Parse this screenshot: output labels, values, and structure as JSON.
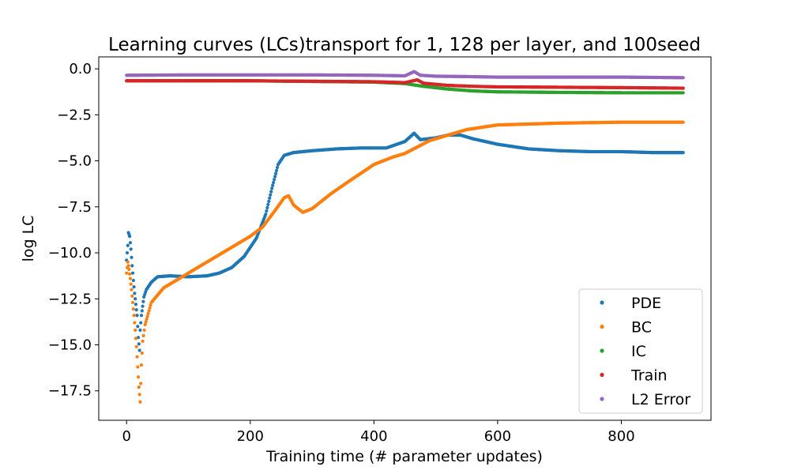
{
  "chart_data": {
    "type": "scatter",
    "title": "Learning curves (LCs)transport for 1, 128 per layer, and 100seed",
    "xlabel": "Training time (# parameter updates)",
    "ylabel": "log LC",
    "xlim": [
      -45,
      945
    ],
    "ylim": [
      -19.1,
      0.65
    ],
    "xticks": [
      0,
      200,
      400,
      600,
      800
    ],
    "yticks": [
      0.0,
      -2.5,
      -5.0,
      -7.5,
      -10.0,
      -12.5,
      -15.0,
      -17.5
    ],
    "xtick_labels": [
      "0",
      "200",
      "400",
      "600",
      "800"
    ],
    "ytick_labels": [
      "0.0",
      "−2.5",
      "−5.0",
      "−7.5",
      "−10.0",
      "−12.5",
      "−15.0",
      "−17.5"
    ],
    "legend_position": "lower-right",
    "grid": false,
    "series": [
      {
        "name": "PDE",
        "color": "#1f77b4",
        "points": [
          [
            0,
            -10.4
          ],
          [
            2,
            -9.6
          ],
          [
            3,
            -8.9
          ],
          [
            5,
            -9.1
          ],
          [
            7,
            -9.8
          ],
          [
            9,
            -10.7
          ],
          [
            11,
            -11.5
          ],
          [
            13,
            -12.2
          ],
          [
            15,
            -12.8
          ],
          [
            17,
            -13.4
          ],
          [
            19,
            -14.6
          ],
          [
            21,
            -15.3
          ],
          [
            22,
            -14.2
          ],
          [
            24,
            -13.4
          ],
          [
            26,
            -12.9
          ],
          [
            28,
            -12.4
          ],
          [
            32,
            -12.0
          ],
          [
            40,
            -11.6
          ],
          [
            50,
            -11.3
          ],
          [
            70,
            -11.25
          ],
          [
            100,
            -11.3
          ],
          [
            130,
            -11.25
          ],
          [
            150,
            -11.1
          ],
          [
            170,
            -10.8
          ],
          [
            190,
            -10.2
          ],
          [
            210,
            -9.2
          ],
          [
            225,
            -7.9
          ],
          [
            235,
            -6.5
          ],
          [
            245,
            -5.2
          ],
          [
            255,
            -4.7
          ],
          [
            270,
            -4.55
          ],
          [
            300,
            -4.45
          ],
          [
            340,
            -4.35
          ],
          [
            380,
            -4.3
          ],
          [
            420,
            -4.3
          ],
          [
            450,
            -3.95
          ],
          [
            465,
            -3.5
          ],
          [
            475,
            -3.85
          ],
          [
            500,
            -3.75
          ],
          [
            520,
            -3.6
          ],
          [
            540,
            -3.6
          ],
          [
            560,
            -3.8
          ],
          [
            600,
            -4.1
          ],
          [
            650,
            -4.35
          ],
          [
            700,
            -4.45
          ],
          [
            750,
            -4.5
          ],
          [
            800,
            -4.5
          ],
          [
            850,
            -4.55
          ],
          [
            900,
            -4.55
          ]
        ]
      },
      {
        "name": "BC",
        "color": "#ff7f0e",
        "points": [
          [
            0,
            -11.1
          ],
          [
            2,
            -10.5
          ],
          [
            4,
            -10.9
          ],
          [
            6,
            -11.4
          ],
          [
            8,
            -12.0
          ],
          [
            10,
            -12.7
          ],
          [
            12,
            -13.4
          ],
          [
            14,
            -14.2
          ],
          [
            16,
            -15.1
          ],
          [
            18,
            -16.2
          ],
          [
            20,
            -17.3
          ],
          [
            22,
            -18.1
          ],
          [
            24,
            -16.1
          ],
          [
            26,
            -14.8
          ],
          [
            30,
            -13.9
          ],
          [
            40,
            -12.7
          ],
          [
            60,
            -11.9
          ],
          [
            100,
            -11.1
          ],
          [
            150,
            -10.1
          ],
          [
            200,
            -9.1
          ],
          [
            220,
            -8.6
          ],
          [
            240,
            -7.7
          ],
          [
            255,
            -7.0
          ],
          [
            262,
            -6.9
          ],
          [
            270,
            -7.4
          ],
          [
            285,
            -7.8
          ],
          [
            300,
            -7.6
          ],
          [
            330,
            -6.8
          ],
          [
            360,
            -6.1
          ],
          [
            400,
            -5.2
          ],
          [
            430,
            -4.8
          ],
          [
            450,
            -4.6
          ],
          [
            470,
            -4.25
          ],
          [
            490,
            -3.9
          ],
          [
            520,
            -3.6
          ],
          [
            550,
            -3.3
          ],
          [
            600,
            -3.05
          ],
          [
            700,
            -2.95
          ],
          [
            800,
            -2.9
          ],
          [
            900,
            -2.9
          ]
        ]
      },
      {
        "name": "IC",
        "color": "#2ca02c",
        "points": [
          [
            0,
            -0.65
          ],
          [
            200,
            -0.65
          ],
          [
            400,
            -0.72
          ],
          [
            450,
            -0.8
          ],
          [
            480,
            -0.95
          ],
          [
            520,
            -1.1
          ],
          [
            560,
            -1.2
          ],
          [
            600,
            -1.25
          ],
          [
            700,
            -1.28
          ],
          [
            800,
            -1.3
          ],
          [
            900,
            -1.3
          ]
        ]
      },
      {
        "name": "Train",
        "color": "#d62728",
        "points": [
          [
            0,
            -0.65
          ],
          [
            200,
            -0.65
          ],
          [
            400,
            -0.7
          ],
          [
            450,
            -0.75
          ],
          [
            470,
            -0.6
          ],
          [
            480,
            -0.78
          ],
          [
            520,
            -0.9
          ],
          [
            560,
            -0.95
          ],
          [
            600,
            -0.98
          ],
          [
            700,
            -1.0
          ],
          [
            800,
            -1.02
          ],
          [
            900,
            -1.05
          ]
        ]
      },
      {
        "name": "L2 Error",
        "color": "#9467bd",
        "points": [
          [
            0,
            -0.35
          ],
          [
            100,
            -0.33
          ],
          [
            200,
            -0.33
          ],
          [
            300,
            -0.33
          ],
          [
            400,
            -0.35
          ],
          [
            450,
            -0.38
          ],
          [
            465,
            -0.15
          ],
          [
            475,
            -0.35
          ],
          [
            500,
            -0.4
          ],
          [
            550,
            -0.42
          ],
          [
            600,
            -0.45
          ],
          [
            700,
            -0.45
          ],
          [
            800,
            -0.45
          ],
          [
            900,
            -0.48
          ]
        ]
      }
    ]
  }
}
